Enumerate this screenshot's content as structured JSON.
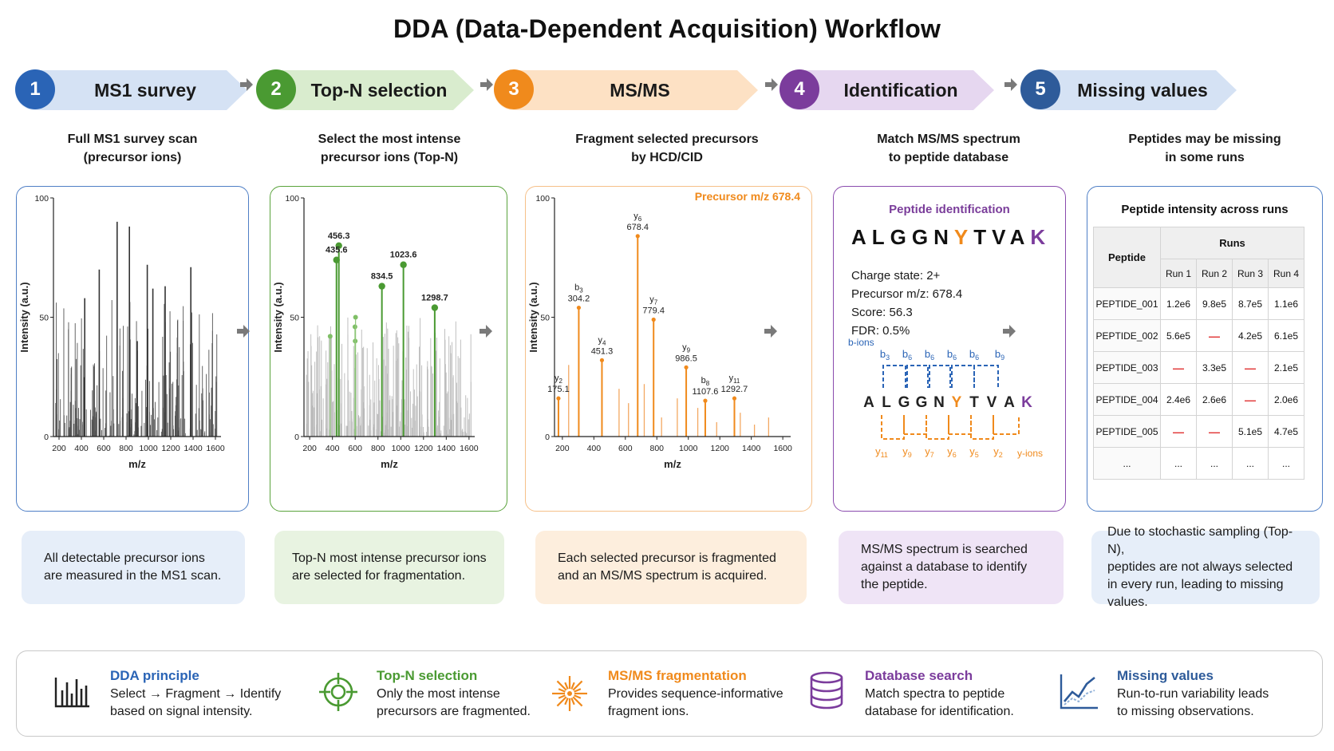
{
  "title": "DDA (Data-Dependent Acquisition) Workflow",
  "colors": {
    "blue": "#2a64b6",
    "green": "#4a9a32",
    "orange": "#f08a1c",
    "purple": "#7b3c9c",
    "navy": "#2e5b9a"
  },
  "steps": [
    {
      "num": "1",
      "label": "MS1 survey",
      "desc1": "Full MS1 survey scan",
      "desc2": "(precursor ions)",
      "note1": "All detectable precursor ions",
      "note2": "are measured in the MS1 scan.",
      "note3": "",
      "note4": ""
    },
    {
      "num": "2",
      "label": "Top-N selection",
      "desc1": "Select the most intense",
      "desc2": "precursor ions (Top-N)",
      "note1": "Top-N most intense precursor ions",
      "note2": "are selected for fragmentation.",
      "note3": "",
      "note4": ""
    },
    {
      "num": "3",
      "label": "MS/MS",
      "desc1": "Fragment selected precursors",
      "desc2": "by HCD/CID",
      "note1": "Each selected precursor is fragmented",
      "note2": "and an MS/MS spectrum is acquired.",
      "note3": "",
      "note4": ""
    },
    {
      "num": "4",
      "label": "Identification",
      "desc1": "Match MS/MS spectrum",
      "desc2": "to peptide database",
      "note1": "MS/MS spectrum is searched",
      "note2": "against a database to identify",
      "note3": "the peptide.",
      "note4": ""
    },
    {
      "num": "5",
      "label": "Missing values",
      "desc1": "Peptides may be missing",
      "desc2": "in some runs",
      "note1": "Due to stochastic sampling (Top-N),",
      "note2": "peptides are not always selected",
      "note3": "in every run, leading to missing",
      "note4": "values."
    }
  ],
  "axes": {
    "ylabel": "Intensity (a.u.)",
    "xlabel": "m/z",
    "yticks": [
      "0",
      "50",
      "100"
    ],
    "xticks": [
      "200",
      "400",
      "600",
      "800",
      "1000",
      "1200",
      "1400",
      "1600"
    ]
  },
  "chart_data": [
    {
      "type": "bar",
      "panel": "MS1 survey",
      "xlabel": "m/z",
      "ylabel": "Intensity (a.u.)",
      "xlim": [
        150,
        1650
      ],
      "ylim": [
        0,
        100
      ],
      "x": [
        430,
        560,
        720,
        830,
        990,
        1040,
        1380,
        1150,
        900
      ],
      "values": [
        58,
        70,
        90,
        88,
        72,
        62,
        71,
        63,
        40
      ]
    },
    {
      "type": "bar",
      "panel": "Top-N selection",
      "xlabel": "m/z",
      "ylabel": "Intensity (a.u.)",
      "xlim": [
        150,
        1650
      ],
      "ylim": [
        0,
        100
      ],
      "labels": [
        "456.3",
        "435.6",
        "834.5",
        "1023.6",
        "1298.7"
      ],
      "x": [
        456.3,
        435.6,
        834.5,
        1023.6,
        1298.7
      ],
      "values": [
        80,
        74,
        63,
        72,
        54
      ]
    },
    {
      "type": "bar",
      "panel": "MS/MS",
      "title": "Precursor m/z 678.4",
      "xlabel": "m/z",
      "ylabel": "Intensity (a.u.)",
      "xlim": [
        150,
        1650
      ],
      "ylim": [
        0,
        100
      ],
      "ions": [
        "y2",
        "b3",
        "y4",
        "y6",
        "y7",
        "y9",
        "b8",
        "y11"
      ],
      "labels": [
        "175.1",
        "304.2",
        "451.3",
        "678.4",
        "779.4",
        "986.5",
        "1107.6",
        "1292.7"
      ],
      "x": [
        175.1,
        304.2,
        451.3,
        678.4,
        779.4,
        986.5,
        1107.6,
        1292.7
      ],
      "values": [
        16,
        54,
        32,
        84,
        49,
        29,
        15,
        16
      ]
    }
  ],
  "identification": {
    "title": "Peptide identification",
    "sequence": [
      "A",
      "L",
      "G",
      "G",
      "N",
      "Y",
      "T",
      "V",
      "A",
      "K"
    ],
    "charge": "Charge state: 2+",
    "precursor": "Precursor m/z: 678.4",
    "score": "Score: 56.3",
    "fdr": "FDR: 0.5%",
    "b_label": "b-ions",
    "y_label": "y-ions",
    "b_marks": [
      "b3",
      "b6",
      "b6",
      "b6",
      "b6",
      "b9"
    ],
    "y_marks": [
      "y11",
      "y9",
      "y7",
      "y6",
      "y5",
      "y2"
    ]
  },
  "table": {
    "title": "Peptide intensity across runs",
    "col_peptide": "Peptide",
    "col_runs": "Runs",
    "runs": [
      "Run 1",
      "Run 2",
      "Run 3",
      "Run 4"
    ],
    "rows": [
      [
        "PEPTIDE_001",
        "1.2e6",
        "9.8e5",
        "8.7e5",
        "1.1e6"
      ],
      [
        "PEPTIDE_002",
        "5.6e5",
        "—",
        "4.2e5",
        "6.1e5"
      ],
      [
        "PEPTIDE_003",
        "—",
        "3.3e5",
        "—",
        "2.1e5"
      ],
      [
        "PEPTIDE_004",
        "2.4e6",
        "2.6e6",
        "—",
        "2.0e6"
      ],
      [
        "PEPTIDE_005",
        "—",
        "—",
        "5.1e5",
        "4.7e5"
      ],
      [
        "...",
        "...",
        "...",
        "...",
        "..."
      ]
    ]
  },
  "legend": [
    {
      "title": "DDA principle",
      "line1": "Select → Fragment → Identify",
      "line2": "based on signal intensity.",
      "icon": "bar-chart-icon"
    },
    {
      "title": "Top-N selection",
      "line1": "Only the most intense",
      "line2": "precursors are fragmented.",
      "icon": "target-icon"
    },
    {
      "title": "MS/MS fragmentation",
      "line1": "Provides sequence-informative",
      "line2": "fragment ions.",
      "icon": "burst-icon"
    },
    {
      "title": "Database search",
      "line1": "Match spectra to peptide",
      "line2": "database for identification.",
      "icon": "database-icon"
    },
    {
      "title": "Missing values",
      "line1": "Run-to-run variability leads",
      "line2": "to missing observations.",
      "icon": "line-chart-icon"
    }
  ]
}
